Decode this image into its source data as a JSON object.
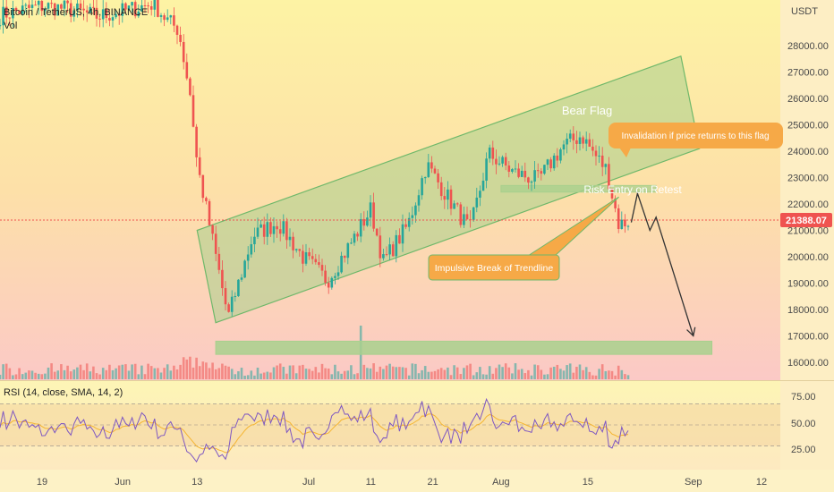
{
  "header": {
    "symbol": "Bitcoin / TetherUS, 4h, BINANCE",
    "vol_label": "Vol",
    "currency": "USDT"
  },
  "rsi": {
    "label": "RSI (14, close, SMA, 14, 2)",
    "ticks": [
      "75.00",
      "50.00",
      "25.00"
    ]
  },
  "annotations": {
    "bear_flag": "Bear Flag",
    "invalidation": "Invalidation if price returns to this flag",
    "risk_entry": "Risk Entry on Retest",
    "impulsive_break": "Impulsive Break of Trendline"
  },
  "last_price": "21388.07",
  "colors": {
    "up": "#26a69a",
    "down": "#ef5350",
    "flag_fill": "#a8d08d",
    "callout": "#f6a947",
    "rsi_line": "#7e57c2",
    "rsi_ma": "#f5b532",
    "price_tag": "#ef5350"
  },
  "chart_data": {
    "type": "candlestick",
    "title": "Bitcoin / TetherUS, 4h, BINANCE",
    "y_unit": "USDT",
    "y_ticks": [
      "28000.00",
      "27000.00",
      "26000.00",
      "25000.00",
      "24000.00",
      "23000.00",
      "22000.00",
      "21000.00",
      "20000.00",
      "19000.00",
      "18000.00",
      "17000.00",
      "16000.00"
    ],
    "x_ticks": [
      "19",
      "Jun",
      "13",
      "Jul",
      "11",
      "21",
      "Aug",
      "15",
      "Sep",
      "12"
    ],
    "ylim": [
      15600,
      29500
    ],
    "price_path": [
      [
        "May 10",
        28900
      ],
      [
        "May 13",
        29200
      ],
      [
        "May 19",
        29500
      ],
      [
        "May 23",
        29400
      ],
      [
        "May 28",
        29100
      ],
      [
        "Jun 1",
        29300
      ],
      [
        "Jun 6",
        29600
      ],
      [
        "Jun 8",
        29000
      ],
      [
        "Jun 10",
        28600
      ],
      [
        "Jun 12",
        26000
      ],
      [
        "Jun 13",
        23500
      ],
      [
        "Jun 15",
        21200
      ],
      [
        "Jun 18",
        17700
      ],
      [
        "Jun 22",
        20800
      ],
      [
        "Jun 26",
        21300
      ],
      [
        "Jun 30",
        20000
      ],
      [
        "Jul 4",
        19100
      ],
      [
        "Jul 8",
        20600
      ],
      [
        "Jul 11",
        21800
      ],
      [
        "Jul 13",
        19800
      ],
      [
        "Jul 17",
        21200
      ],
      [
        "Jul 20",
        23500
      ],
      [
        "Jul 23",
        22400
      ],
      [
        "Jul 27",
        21000
      ],
      [
        "Jul 30",
        23900
      ],
      [
        "Aug 3",
        23200
      ],
      [
        "Aug 7",
        22900
      ],
      [
        "Aug 11",
        24200
      ],
      [
        "Aug 14",
        24600
      ],
      [
        "Aug 16",
        23900
      ],
      [
        "Aug 18",
        23300
      ],
      [
        "Aug 20",
        21200
      ],
      [
        "Aug 22",
        21400
      ]
    ],
    "projection": [
      [
        "Aug 22",
        21300
      ],
      [
        "Aug 23",
        22400
      ],
      [
        "Aug 25",
        21000
      ],
      [
        "Aug 26",
        21500
      ],
      [
        "Sep 1",
        17000
      ]
    ],
    "zones": [
      {
        "label": "Risk Entry on Retest",
        "from": [
          "Aug 1",
          22450
        ],
        "to": [
          "Aug 26",
          22700
        ]
      },
      {
        "label": "",
        "from": [
          "Jun 16",
          16300
        ],
        "to": [
          "Sep 4",
          16800
        ]
      }
    ],
    "flag": {
      "label": "Bear Flag",
      "lower": [
        [
          "Jun 16",
          17500
        ],
        [
          "Sep 2",
          24100
        ]
      ],
      "upper": [
        [
          "Jun 13",
          21000
        ],
        [
          "Aug 30",
          27600
        ]
      ]
    },
    "volume_label": "Vol",
    "rsi": {
      "label": "RSI (14, close, SMA, 14, 2)",
      "levels": [
        70,
        50,
        30
      ],
      "ylim": [
        10,
        90
      ]
    },
    "last_price": 21388.07
  }
}
